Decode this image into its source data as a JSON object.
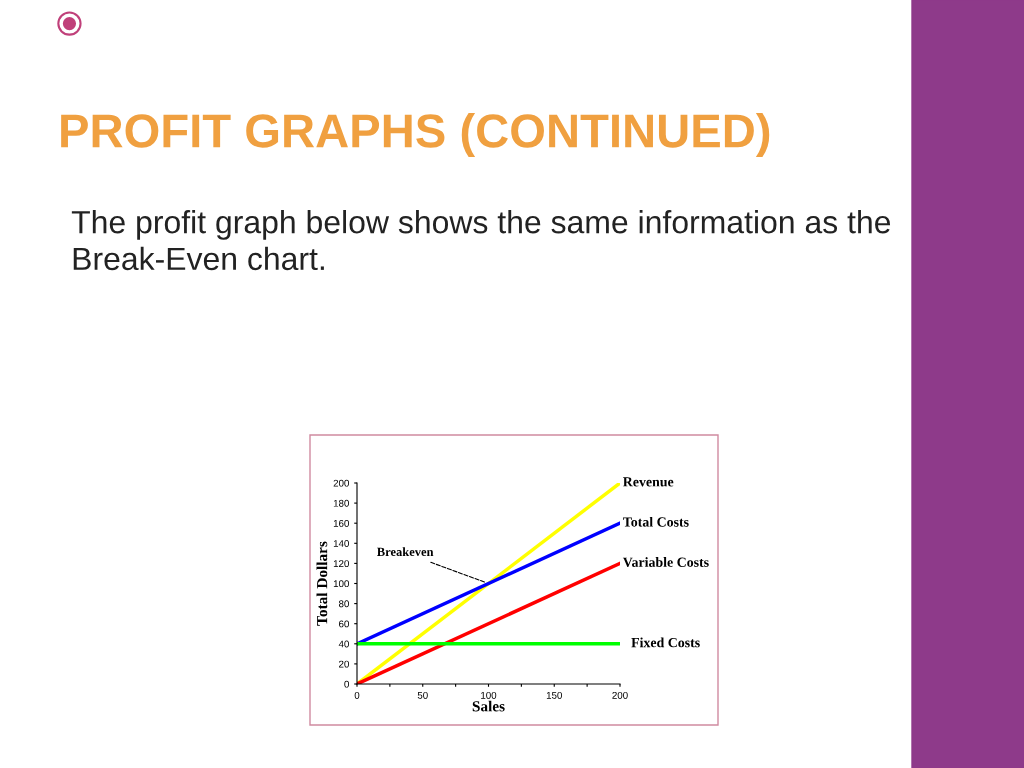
{
  "chart_data": {
    "type": "line",
    "title": "PROFIT GRAPHS (CONTINUED)",
    "subtitle": "The profit graph below shows the same information as the Break-Even chart.",
    "xlabel": "Sales",
    "ylabel": "Total Dollars",
    "x": [
      0,
      200
    ],
    "series": [
      {
        "name": "Revenue",
        "color": "#ffff00",
        "values": [
          0,
          200
        ]
      },
      {
        "name": "Total Costs",
        "color": "#0000ff",
        "values": [
          40,
          160
        ]
      },
      {
        "name": "Variable Costs",
        "color": "#ff0000",
        "values": [
          0,
          120
        ]
      },
      {
        "name": "Fixed Costs",
        "color": "#00ff00",
        "values": [
          40,
          40
        ]
      }
    ],
    "annotations": [
      {
        "text": "Breakeven",
        "x": 100,
        "y": 100
      }
    ],
    "xlim": [
      0,
      200
    ],
    "ylim": [
      0,
      200
    ],
    "xticks": [
      0,
      {
        "value": 25,
        "label": null
      },
      50,
      {
        "value": 75,
        "label": null
      },
      100,
      {
        "value": 125,
        "label": null
      },
      150,
      {
        "value": 175,
        "label": null
      },
      200
    ],
    "yticks": [
      0,
      20,
      40,
      60,
      80,
      100,
      120,
      140,
      160,
      180,
      200
    ],
    "grid": false,
    "legend": false,
    "marker": "none",
    "line_style": "solid"
  }
}
